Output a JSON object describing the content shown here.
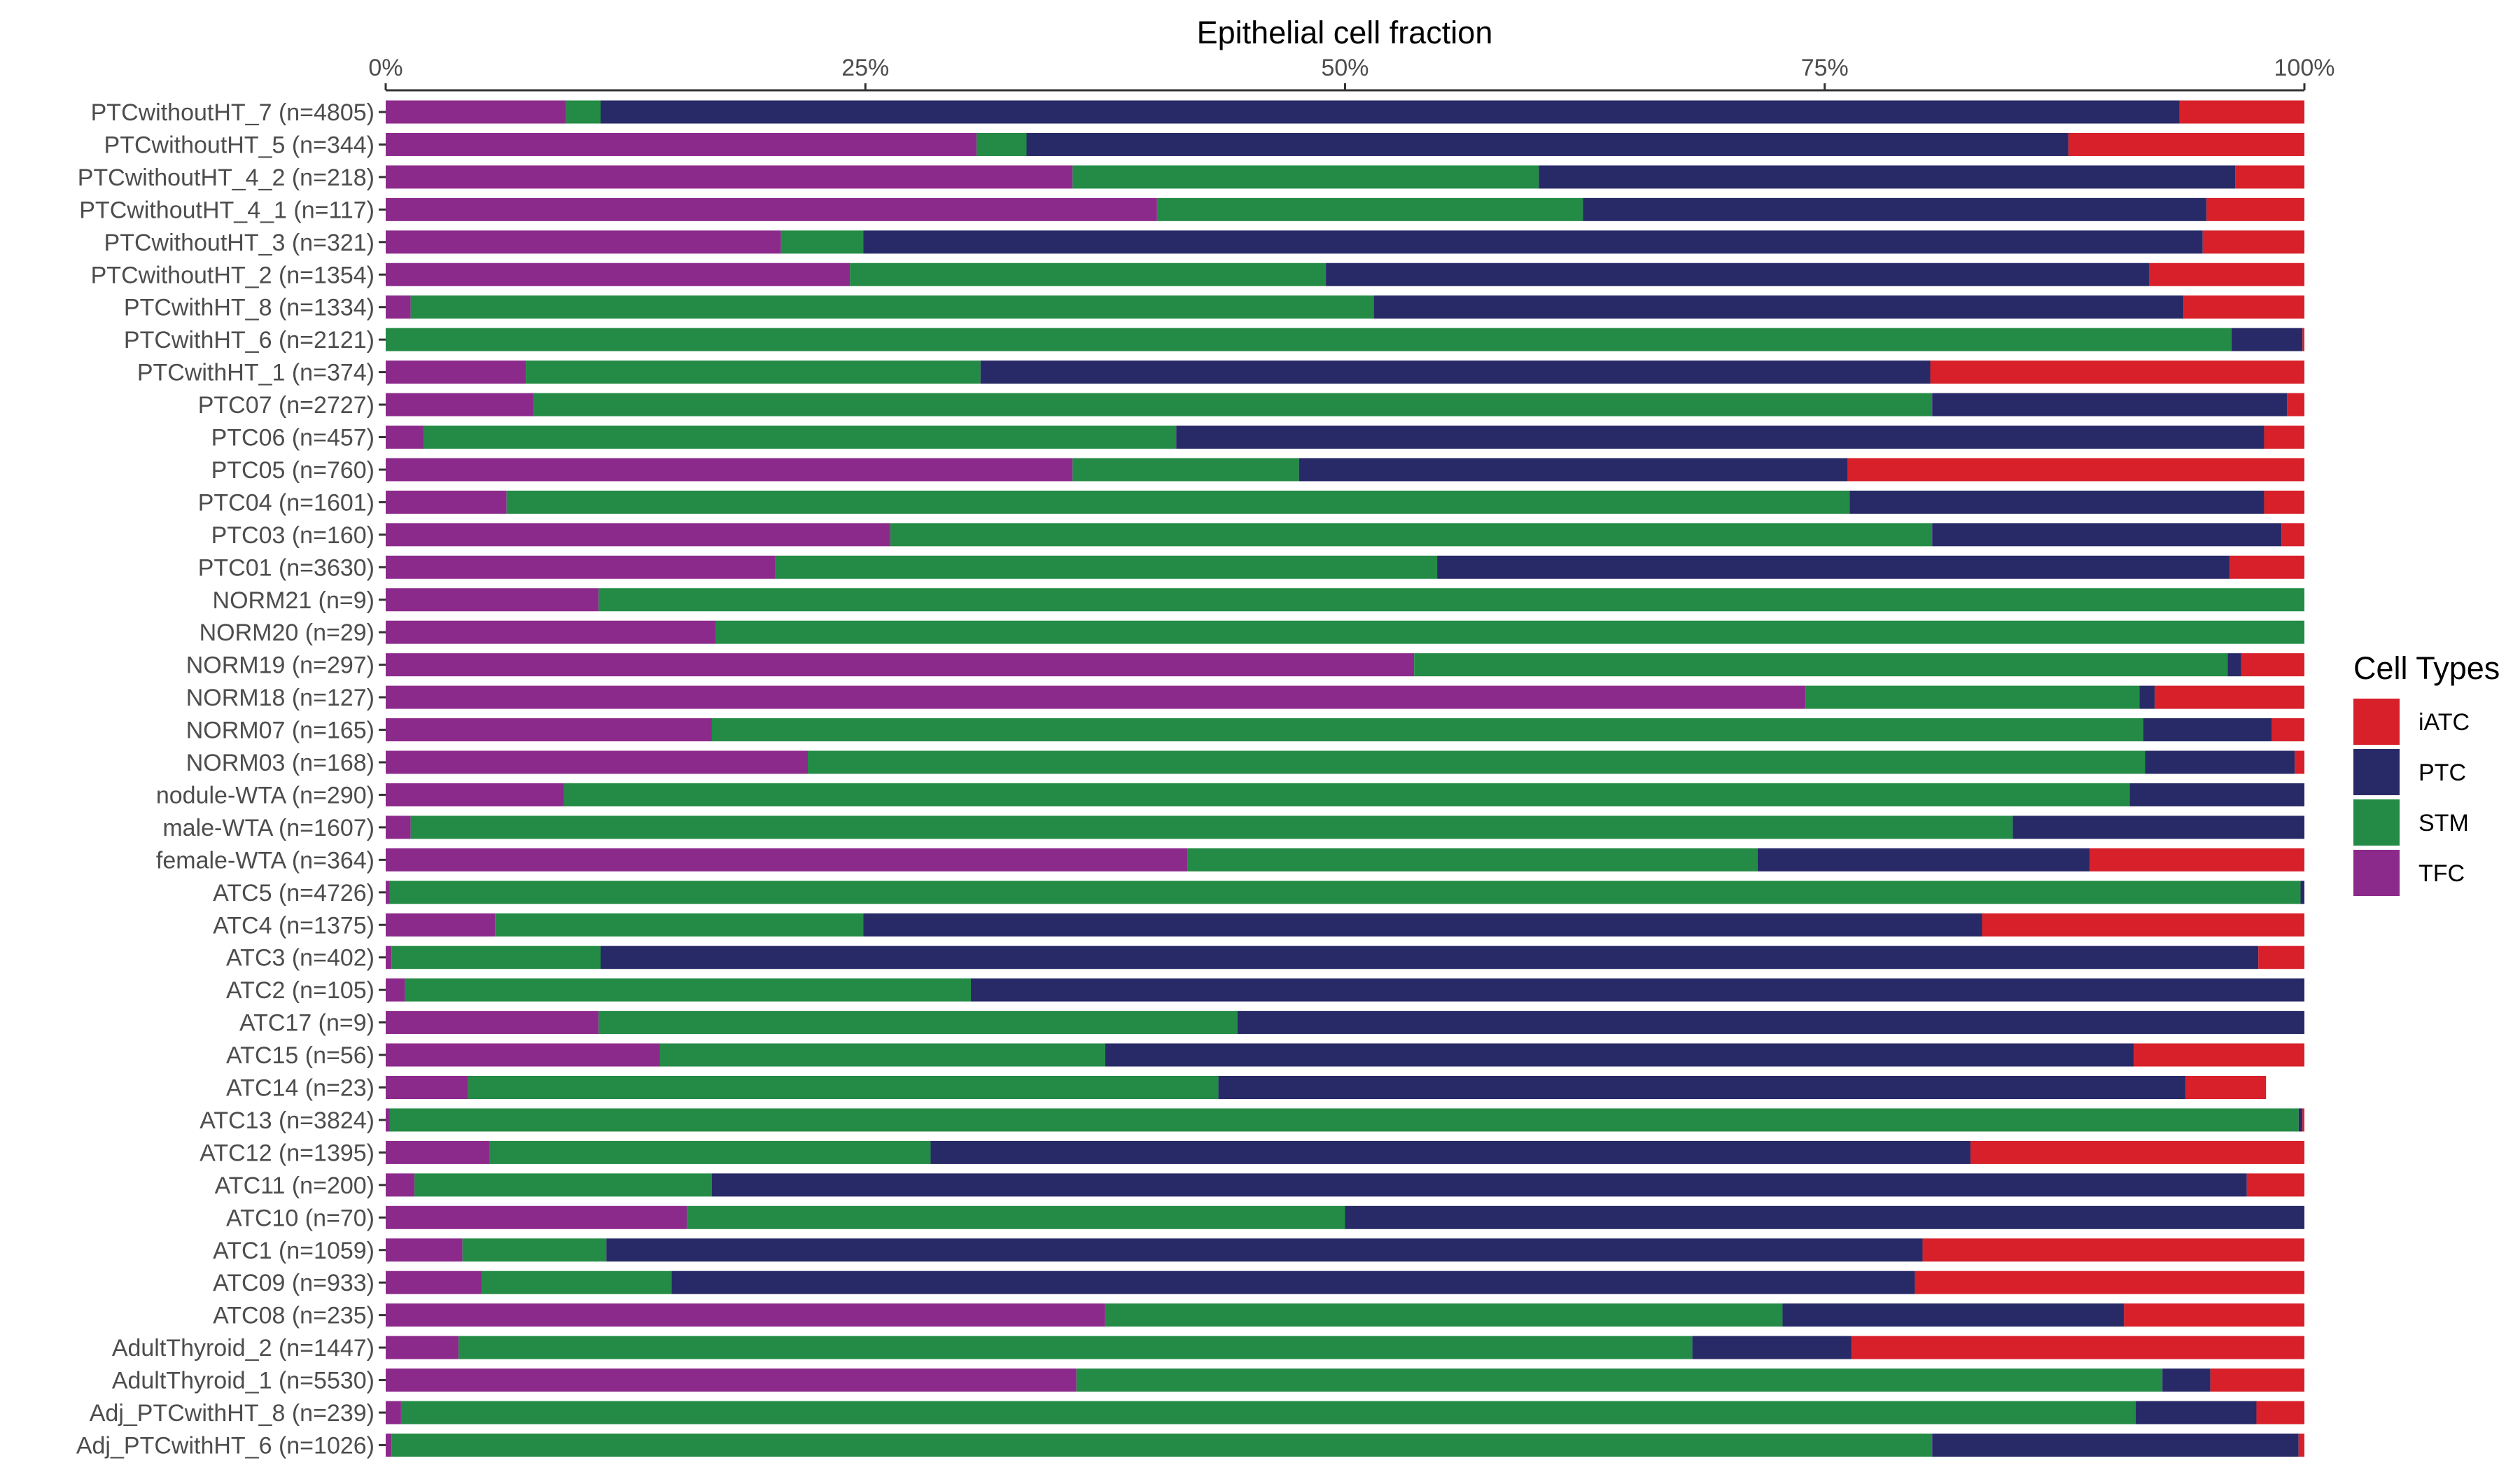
{
  "chart_data": {
    "type": "bar",
    "orientation": "horizontal",
    "stacked": true,
    "title": "Epithelial cell fraction",
    "xlabel": "",
    "ylabel": "",
    "xlim": [
      0,
      100
    ],
    "x_ticks": [
      "0%",
      "25%",
      "50%",
      "75%",
      "100%"
    ],
    "x_axis_position": "top",
    "grid": false,
    "legend_title": "Cell Types",
    "legend_position": "right",
    "legend_order": [
      "iATC",
      "PTC",
      "STM",
      "TFC"
    ],
    "stack_order": [
      "TFC",
      "STM",
      "PTC",
      "iATC"
    ],
    "colors": {
      "TFC": "#8C2A8C",
      "STM": "#238B45",
      "PTC": "#282A67",
      "iATC": "#D7202A"
    },
    "categories": [
      "PTCwithoutHT_7 (n=4805)",
      "PTCwithoutHT_5 (n=344)",
      "PTCwithoutHT_4_2 (n=218)",
      "PTCwithoutHT_4_1 (n=117)",
      "PTCwithoutHT_3 (n=321)",
      "PTCwithoutHT_2 (n=1354)",
      "PTCwithHT_8 (n=1334)",
      "PTCwithHT_6 (n=2121)",
      "PTCwithHT_1 (n=374)",
      "PTC07 (n=2727)",
      "PTC06 (n=457)",
      "PTC05 (n=760)",
      "PTC04 (n=1601)",
      "PTC03 (n=160)",
      "PTC01 (n=3630)",
      "NORM21 (n=9)",
      "NORM20 (n=29)",
      "NORM19 (n=297)",
      "NORM18 (n=127)",
      "NORM07 (n=165)",
      "NORM03 (n=168)",
      "nodule-WTA (n=290)",
      "male-WTA (n=1607)",
      "female-WTA (n=364)",
      "ATC5 (n=4726)",
      "ATC4 (n=1375)",
      "ATC3 (n=402)",
      "ATC2 (n=105)",
      "ATC17 (n=9)",
      "ATC15 (n=56)",
      "ATC14 (n=23)",
      "ATC13 (n=3824)",
      "ATC12 (n=1395)",
      "ATC11 (n=200)",
      "ATC10 (n=70)",
      "ATC1 (n=1059)",
      "ATC09 (n=933)",
      "ATC08 (n=235)",
      "AdultThyroid_2 (n=1447)",
      "AdultThyroid_1 (n=5530)",
      "Adj_PTCwithHT_8 (n=239)",
      "Adj_PTCwithHT_6 (n=1026)"
    ],
    "series": [
      {
        "name": "TFC",
        "values": [
          9.4,
          30.8,
          35.8,
          40.2,
          20.6,
          24.2,
          1.3,
          0,
          7.3,
          7.7,
          2.0,
          35.8,
          6.3,
          26.3,
          20.3,
          11.1,
          17.2,
          53.6,
          74.0,
          17.0,
          22.0,
          9.3,
          1.3,
          41.8,
          0.2,
          5.7,
          0.3,
          1.0,
          11.1,
          14.3,
          4.3,
          0.2,
          5.4,
          1.5,
          15.7,
          4.0,
          5.0,
          37.5,
          3.8,
          36.0,
          0.8,
          0.3
        ]
      },
      {
        "name": "STM",
        "values": [
          1.8,
          2.6,
          24.3,
          22.2,
          4.3,
          24.8,
          50.2,
          96.2,
          23.7,
          72.9,
          39.2,
          11.8,
          70.0,
          54.3,
          34.5,
          88.9,
          82.8,
          42.4,
          17.4,
          74.6,
          69.7,
          81.6,
          83.5,
          29.7,
          99.6,
          19.2,
          10.9,
          29.5,
          33.3,
          23.2,
          39.1,
          99.5,
          23.0,
          15.5,
          34.3,
          7.5,
          9.9,
          35.3,
          64.3,
          56.6,
          90.4,
          80.3
        ]
      },
      {
        "name": "PTC",
        "values": [
          82.3,
          54.3,
          36.3,
          32.5,
          69.8,
          42.9,
          42.2,
          3.7,
          49.5,
          18.5,
          56.7,
          28.6,
          21.6,
          18.2,
          41.3,
          0,
          0,
          0.7,
          0.8,
          6.7,
          7.8,
          9.1,
          15.2,
          17.3,
          0.2,
          58.3,
          86.4,
          69.5,
          55.6,
          53.6,
          50.4,
          0.2,
          54.2,
          80.0,
          50.0,
          68.6,
          64.8,
          17.8,
          8.3,
          2.5,
          6.3,
          19.1
        ]
      },
      {
        "name": "iATC",
        "values": [
          6.5,
          12.3,
          3.6,
          5.1,
          5.3,
          8.1,
          6.3,
          0.1,
          19.5,
          0.9,
          2.1,
          23.8,
          2.1,
          1.2,
          3.9,
          0,
          0,
          3.3,
          7.8,
          1.7,
          0.5,
          0,
          0,
          11.2,
          0,
          16.8,
          2.4,
          0,
          0,
          8.9,
          4.2,
          0.1,
          17.4,
          3.0,
          0,
          19.9,
          20.3,
          9.4,
          23.6,
          4.9,
          2.5,
          0.3
        ]
      }
    ]
  }
}
